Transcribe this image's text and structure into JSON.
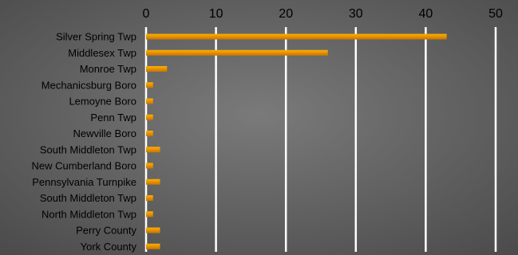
{
  "chart_data": {
    "type": "bar",
    "orientation": "horizontal",
    "title": "",
    "xlabel": "",
    "ylabel": "",
    "xlim": [
      0,
      50
    ],
    "x_ticks": [
      0,
      10,
      20,
      30,
      40,
      50
    ],
    "x_axis_position": "top",
    "grid": true,
    "legend": "none",
    "categories": [
      "Silver Spring Twp",
      "Middlesex Twp",
      "Monroe Twp",
      "Mechanicsburg Boro",
      "Lemoyne Boro",
      "Penn Twp",
      "Newville Boro",
      "South Middleton Twp",
      "New Cumberland Boro",
      "Pennsylvania Turnpike",
      "South Middleton Twp",
      "North Middleton Twp",
      "Perry County",
      "York County"
    ],
    "values": [
      43,
      26,
      3,
      1,
      1,
      1,
      1,
      2,
      1,
      2,
      1,
      1,
      2,
      2
    ],
    "colors": {
      "background_center": "#7a7a7a",
      "background_edge": "#4a4a4a",
      "bar_top": "#ffb000",
      "bar_bottom": "#c87400",
      "gridline": "#ffffff",
      "text": "#000000"
    }
  }
}
